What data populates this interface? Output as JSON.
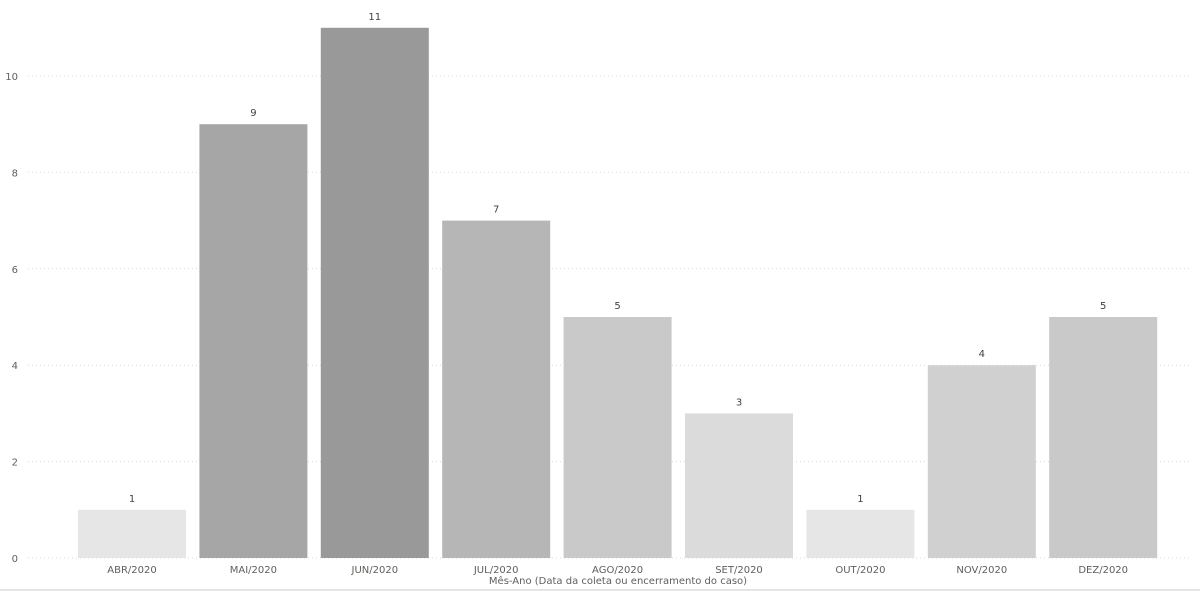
{
  "chart_data": {
    "type": "bar",
    "categories": [
      "ABR/2020",
      "MAI/2020",
      "JUN/2020",
      "JUL/2020",
      "AGO/2020",
      "SET/2020",
      "OUT/2020",
      "NOV/2020",
      "DEZ/2020"
    ],
    "values": [
      1,
      9,
      11,
      7,
      5,
      3,
      1,
      4,
      5
    ],
    "bar_colors": [
      "#e6e6e6",
      "#a6a6a6",
      "#999999",
      "#b6b6b6",
      "#c9c9c9",
      "#dbdbdb",
      "#e6e6e6",
      "#d0d0d0",
      "#c9c9c9"
    ],
    "xlabel": "Mês-Ano (Data da coleta ou encerramento do caso)",
    "ylabel": "",
    "ylim": [
      0,
      11
    ],
    "yticks": [
      0,
      2,
      4,
      6,
      8,
      10
    ],
    "grid": true,
    "data_labels": true
  }
}
